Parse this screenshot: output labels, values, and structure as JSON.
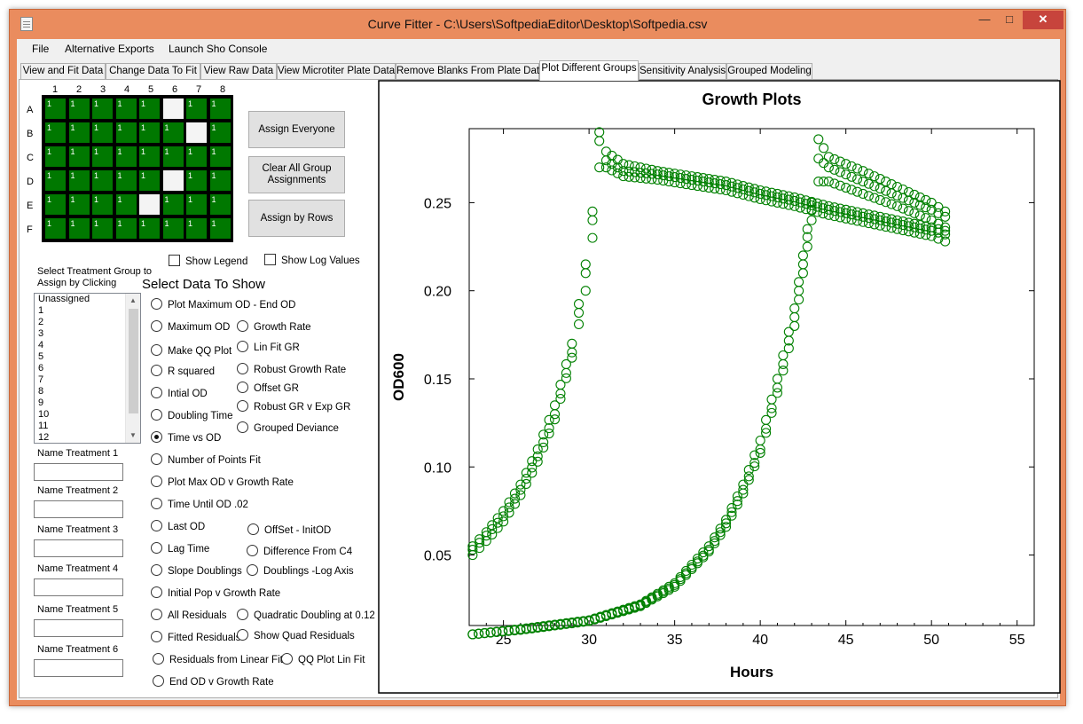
{
  "window": {
    "title": "Curve Fitter - C:\\Users\\SoftpediaEditor\\Desktop\\Softpedia.csv",
    "controls": {
      "minimize": "—",
      "maximize": "□",
      "close": "✕"
    }
  },
  "menu": [
    "File",
    "Alternative Exports",
    "Launch Sho Console"
  ],
  "tabs": [
    {
      "label": "View and Fit Data",
      "active": false
    },
    {
      "label": "Change Data To Fit",
      "active": false
    },
    {
      "label": "View Raw Data",
      "active": false
    },
    {
      "label": "View Microtiter Plate Data",
      "active": false
    },
    {
      "label": "Remove Blanks From Plate Data",
      "active": false
    },
    {
      "label": "Plot Different Groups",
      "active": true
    },
    {
      "label": "Sensitivity Analysis",
      "active": false
    },
    {
      "label": "Grouped Modeling",
      "active": false
    }
  ],
  "plate": {
    "columns": [
      "1",
      "2",
      "3",
      "4",
      "5",
      "6",
      "7",
      "8"
    ],
    "rows": [
      "A",
      "B",
      "C",
      "D",
      "E",
      "F"
    ],
    "cells": [
      [
        "1",
        "1",
        "1",
        "1",
        "1",
        "",
        "1",
        "1"
      ],
      [
        "1",
        "1",
        "1",
        "1",
        "1",
        "1",
        "",
        "1"
      ],
      [
        "1",
        "1",
        "1",
        "1",
        "1",
        "1",
        "1",
        "1"
      ],
      [
        "1",
        "1",
        "1",
        "1",
        "1",
        "",
        "1",
        "1"
      ],
      [
        "1",
        "1",
        "1",
        "1",
        "",
        "1",
        "1",
        "1"
      ],
      [
        "1",
        "1",
        "1",
        "1",
        "1",
        "1",
        "1",
        "1"
      ]
    ],
    "assigned_color": "#007800",
    "unassigned_color": "#f4f4f4"
  },
  "buttons": {
    "assign_everyone": "Assign Everyone",
    "clear_all": "Clear All Group Assignments",
    "assign_rows": "Assign by Rows"
  },
  "checkboxes": {
    "show_legend": "Show Legend",
    "show_log": "Show Log Values"
  },
  "select_group_label": "Select Treatment Group to Assign by Clicking",
  "groups": [
    "Unassigned",
    "1",
    "2",
    "3",
    "4",
    "5",
    "6",
    "7",
    "8",
    "9",
    "10",
    "11",
    "12"
  ],
  "treatments": [
    {
      "label": "Name Treatment 1",
      "value": ""
    },
    {
      "label": "Name Treatment 2",
      "value": ""
    },
    {
      "label": "Name Treatment 3",
      "value": ""
    },
    {
      "label": "Name Treatment 4",
      "value": ""
    },
    {
      "label": "Name Treatment 5",
      "value": ""
    },
    {
      "label": "Name Treatment 6",
      "value": ""
    }
  ],
  "select_data_title": "Select Data To Show",
  "radios_left": [
    {
      "label": "Plot Maximum OD - End OD",
      "checked": false
    },
    {
      "label": "Maximum OD",
      "checked": false
    },
    {
      "label": "Make QQ Plot",
      "checked": false
    },
    {
      "label": "R squared",
      "checked": false
    },
    {
      "label": "Intial OD",
      "checked": false
    },
    {
      "label": "Doubling Time",
      "checked": false
    },
    {
      "label": "Time vs OD",
      "checked": true
    },
    {
      "label": "Number of Points Fit",
      "checked": false
    },
    {
      "label": "Plot Max OD v Growth Rate",
      "checked": false
    },
    {
      "label": "Time Until OD .02",
      "checked": false
    },
    {
      "label": "Last OD",
      "checked": false
    },
    {
      "label": "Lag Time",
      "checked": false
    },
    {
      "label": "Slope Doublings",
      "checked": false
    },
    {
      "label": "Initial Pop v Growth Rate",
      "checked": false
    },
    {
      "label": "All Residuals",
      "checked": false
    },
    {
      "label": "Fitted Residuals",
      "checked": false
    },
    {
      "label": "Residuals from Linear Fit",
      "checked": false
    },
    {
      "label": "End OD v Growth Rate",
      "checked": false
    }
  ],
  "radios_right": [
    {
      "label": "Growth Rate",
      "checked": false
    },
    {
      "label": "Lin Fit GR",
      "checked": false
    },
    {
      "label": "Robust Growth Rate",
      "checked": false
    },
    {
      "label": "Offset GR",
      "checked": false
    },
    {
      "label": "Robust GR v Exp GR",
      "checked": false
    },
    {
      "label": "Grouped Deviance",
      "checked": false
    },
    {
      "label": "OffSet - InitOD",
      "checked": false
    },
    {
      "label": "Difference From C4",
      "checked": false
    },
    {
      "label": "Doublings -Log Axis",
      "checked": false
    },
    {
      "label": "Quadratic Doubling at 0.12",
      "checked": false
    },
    {
      "label": "Show Quad Residuals",
      "checked": false
    },
    {
      "label": "QQ Plot Lin Fit",
      "checked": false
    }
  ],
  "chart_data": {
    "type": "scatter",
    "title": "Growth Plots",
    "xlabel": "Hours",
    "ylabel": "OD600",
    "xlim": [
      23,
      56
    ],
    "ylim": [
      0.01,
      0.292
    ],
    "xticks": [
      "25",
      "30",
      "35",
      "40",
      "45",
      "50",
      "55"
    ],
    "xtick_values": [
      25,
      30,
      35,
      40,
      45,
      50,
      55
    ],
    "yticks": [
      "0.05",
      "0.10",
      "0.15",
      "0.20",
      "0.25"
    ],
    "ytick_values": [
      0.05,
      0.1,
      0.15,
      0.2,
      0.25
    ],
    "grid": false,
    "marker": "open-circle",
    "color": "#008000",
    "series": [
      {
        "x": [
          23.2,
          24,
          25,
          26,
          27,
          28,
          29,
          29.8,
          30.2,
          30.6,
          31,
          32,
          34,
          36,
          38,
          40,
          42,
          44,
          46,
          48,
          50,
          50.8
        ],
        "y": [
          0.053,
          0.061,
          0.072,
          0.087,
          0.106,
          0.13,
          0.165,
          0.21,
          0.24,
          0.285,
          0.274,
          0.268,
          0.266,
          0.263,
          0.26,
          0.255,
          0.251,
          0.246,
          0.242,
          0.238,
          0.234,
          0.232
        ]
      },
      {
        "x": [
          23.2,
          24,
          25,
          26,
          27,
          28,
          29,
          29.8,
          30.2,
          30.6,
          31,
          32,
          34,
          36,
          38,
          40,
          42,
          44,
          46,
          48,
          50,
          50.8
        ],
        "y": [
          0.05,
          0.058,
          0.069,
          0.084,
          0.103,
          0.127,
          0.162,
          0.2,
          0.23,
          0.27,
          0.27,
          0.265,
          0.263,
          0.26,
          0.257,
          0.252,
          0.248,
          0.243,
          0.239,
          0.235,
          0.231,
          0.228
        ]
      },
      {
        "x": [
          23.2,
          24,
          25,
          26,
          27,
          28,
          29,
          29.8,
          30.2,
          30.6,
          31,
          32,
          34,
          36,
          38,
          40,
          42,
          44,
          46,
          48,
          50,
          50.8
        ],
        "y": [
          0.055,
          0.063,
          0.075,
          0.09,
          0.11,
          0.135,
          0.17,
          0.215,
          0.245,
          0.29,
          0.279,
          0.272,
          0.268,
          0.265,
          0.262,
          0.257,
          0.253,
          0.248,
          0.244,
          0.24,
          0.236,
          0.234
        ]
      },
      {
        "x": [
          23.2,
          26,
          30,
          33,
          35,
          37,
          38,
          39,
          40,
          41,
          42,
          42.5,
          43,
          43.4,
          44,
          46,
          48,
          50,
          50.8
        ],
        "y": [
          0.005,
          0.008,
          0.013,
          0.022,
          0.034,
          0.055,
          0.07,
          0.09,
          0.115,
          0.15,
          0.19,
          0.22,
          0.25,
          0.286,
          0.276,
          0.268,
          0.259,
          0.25,
          0.245
        ]
      },
      {
        "x": [
          23.2,
          26,
          30,
          33,
          35,
          37,
          38,
          39,
          40,
          41,
          42,
          42.5,
          43,
          43.4,
          44,
          46,
          48,
          50,
          50.8
        ],
        "y": [
          0.005,
          0.0075,
          0.0125,
          0.021,
          0.032,
          0.052,
          0.066,
          0.085,
          0.108,
          0.142,
          0.18,
          0.21,
          0.24,
          0.275,
          0.27,
          0.262,
          0.254,
          0.246,
          0.242
        ]
      },
      {
        "x": [
          23.2,
          26,
          30,
          33,
          35,
          37,
          38,
          39,
          40,
          41,
          42,
          42.5,
          43,
          43.4,
          44,
          46,
          48,
          50,
          50.8
        ],
        "y": [
          0.005,
          0.0078,
          0.0128,
          0.0215,
          0.033,
          0.053,
          0.068,
          0.087,
          0.11,
          0.145,
          0.185,
          0.215,
          0.246,
          0.262,
          0.262,
          0.255,
          0.248,
          0.24,
          0.236
        ]
      }
    ]
  }
}
